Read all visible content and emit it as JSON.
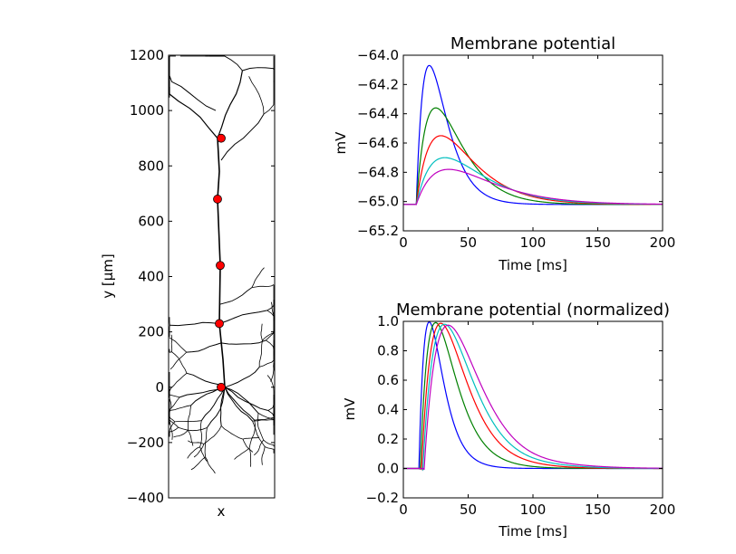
{
  "chart_data": [
    {
      "type": "scatter",
      "xlabel": "x",
      "ylabel": "y [μm]",
      "ylim": [
        -400,
        1200
      ],
      "yticks": [
        "1200",
        "1000",
        "800",
        "600",
        "400",
        "200",
        "0",
        "−200",
        "−400"
      ],
      "markers": {
        "color": "#ff0000",
        "points": [
          [
            0,
            0
          ],
          [
            -2,
            230
          ],
          [
            -1,
            440
          ],
          [
            -4,
            680
          ],
          [
            0,
            900
          ]
        ]
      },
      "morphology_color": "#000000"
    },
    {
      "type": "line",
      "title": "Membrane potential",
      "xlabel": "Time [ms]",
      "ylabel": "mV",
      "xlim": [
        0,
        200
      ],
      "ylim": [
        -65.2,
        -64.0
      ],
      "xticks": [
        "0",
        "50",
        "100",
        "150",
        "200"
      ],
      "yticks": [
        "−64.0",
        "−64.2",
        "−64.4",
        "−64.6",
        "−64.8",
        "−65.0",
        "−65.2"
      ],
      "baseline": -65.02,
      "series": [
        {
          "color": "#0000ff",
          "onset": 10,
          "peak_time": 20,
          "peak": -64.07
        },
        {
          "color": "#008000",
          "onset": 10,
          "peak_time": 25,
          "peak": -64.36
        },
        {
          "color": "#ff0000",
          "onset": 10,
          "peak_time": 29,
          "peak": -64.55
        },
        {
          "color": "#00bfbf",
          "onset": 10,
          "peak_time": 32,
          "peak": -64.7
        },
        {
          "color": "#bf00bf",
          "onset": 10,
          "peak_time": 35,
          "peak": -64.78
        }
      ]
    },
    {
      "type": "line",
      "title": "Membrane potential (normalized)",
      "xlabel": "Time [ms]",
      "ylabel": "mV",
      "xlim": [
        0,
        200
      ],
      "ylim": [
        -0.2,
        1.0
      ],
      "xticks": [
        "0",
        "50",
        "100",
        "150",
        "200"
      ],
      "yticks": [
        "1.0",
        "0.8",
        "0.6",
        "0.4",
        "0.2",
        "0.0",
        "−0.2"
      ],
      "series": [
        {
          "color": "#0000ff",
          "onset": 12,
          "peak_time": 20,
          "peak": 1.0,
          "undershoot": -0.01
        },
        {
          "color": "#008000",
          "onset": 13,
          "peak_time": 25,
          "peak": 1.0,
          "undershoot": -0.02
        },
        {
          "color": "#ff0000",
          "onset": 14,
          "peak_time": 29,
          "peak": 1.0,
          "undershoot": -0.03
        },
        {
          "color": "#00bfbf",
          "onset": 15,
          "peak_time": 32,
          "peak": 1.0,
          "undershoot": -0.045
        },
        {
          "color": "#bf00bf",
          "onset": 16,
          "peak_time": 35,
          "peak": 1.0,
          "undershoot": -0.06
        }
      ]
    }
  ]
}
